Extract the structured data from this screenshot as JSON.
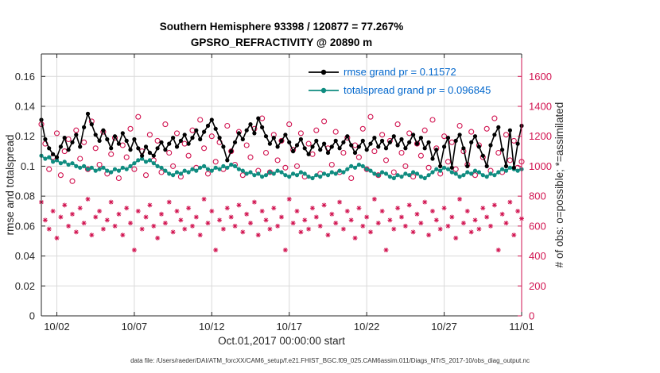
{
  "title_line1": "Southern Hemisphere 93398 / 120877 = 77.267%",
  "title_line2": "GPSRO_REFRACTIVITY @ 20890 m",
  "caption": "data file: /Users/raeder/DAI/ATM_forcXX/CAM6_setup/f.e21.FHIST_BGC.f09_025.CAM6assim.011/Diags_NTrS_2017-10/obs_diag_output.nc",
  "colors": {
    "rmse": "#000000",
    "spread": "#0f8c80",
    "obs": "#d11350",
    "legend_text": "#0066cc",
    "axis": "#262626",
    "grid": "#d9d9d9",
    "background": "#ffffff"
  },
  "chart_data": {
    "type": "line",
    "title": "Southern Hemisphere 93398 / 120877 = 77.267% — GPSRO_REFRACTIVITY @ 20890 m",
    "xlabel": "Oct.01,2017 00:00:00 start",
    "ylabel_left": "rmse and totalspread",
    "ylabel_right": "# of obs: o=possible; *=assimilated",
    "grid": true,
    "legend_position": "top-center-inside",
    "x_range": [
      1,
      32
    ],
    "x_ticks": {
      "values": [
        2,
        7,
        12,
        17,
        22,
        27,
        32
      ],
      "labels": [
        "10/02",
        "10/07",
        "10/12",
        "10/17",
        "10/22",
        "10/27",
        "11/01"
      ]
    },
    "ylim_left": [
      0,
      0.175
    ],
    "yticks_left": {
      "values": [
        0,
        0.02,
        0.04,
        0.06,
        0.08,
        0.1,
        0.12,
        0.14,
        0.16
      ],
      "labels": [
        "0",
        "0.02",
        "0.04",
        "0.06",
        "0.08",
        "0.1",
        "0.12",
        "0.14",
        "0.16"
      ]
    },
    "ylim_right": [
      0,
      1750
    ],
    "yticks_right": {
      "values": [
        0,
        200,
        400,
        600,
        800,
        1000,
        1200,
        1400,
        1600
      ],
      "labels": [
        "0",
        "200",
        "400",
        "600",
        "800",
        "1000",
        "1200",
        "1400",
        "1600"
      ]
    },
    "series": [
      {
        "name": "rmse grand pr = 0.11572",
        "style": "line-dot",
        "axis": "left",
        "color": "#000000",
        "values": [
          0.131,
          0.118,
          0.112,
          0.108,
          0.106,
          0.113,
          0.119,
          0.111,
          0.116,
          0.121,
          0.113,
          0.126,
          0.135,
          0.128,
          0.121,
          0.117,
          0.124,
          0.118,
          0.112,
          0.12,
          0.115,
          0.122,
          0.117,
          0.111,
          0.118,
          0.112,
          0.107,
          0.113,
          0.109,
          0.107,
          0.112,
          0.116,
          0.111,
          0.115,
          0.119,
          0.113,
          0.117,
          0.121,
          0.115,
          0.119,
          0.124,
          0.118,
          0.123,
          0.127,
          0.131,
          0.125,
          0.119,
          0.113,
          0.104,
          0.11,
          0.116,
          0.122,
          0.118,
          0.124,
          0.128,
          0.122,
          0.132,
          0.126,
          0.12,
          0.115,
          0.119,
          0.113,
          0.117,
          0.121,
          0.116,
          0.11,
          0.114,
          0.118,
          0.112,
          0.108,
          0.113,
          0.117,
          0.111,
          0.115,
          0.109,
          0.113,
          0.117,
          0.112,
          0.116,
          0.12,
          0.114,
          0.109,
          0.113,
          0.117,
          0.111,
          0.115,
          0.119,
          0.113,
          0.117,
          0.112,
          0.116,
          0.12,
          0.114,
          0.118,
          0.112,
          0.116,
          0.121,
          0.115,
          0.119,
          0.112,
          0.116,
          0.105,
          0.111,
          0.1,
          0.113,
          0.119,
          0.099,
          0.117,
          0.121,
          0.112,
          0.1,
          0.116,
          0.12,
          0.113,
          0.107,
          0.1,
          0.114,
          0.121,
          0.126,
          0.111,
          0.1,
          0.124,
          0.099,
          0.115,
          0.127
        ]
      },
      {
        "name": "totalspread grand pr = 0.096845",
        "style": "line-dot",
        "axis": "left",
        "color": "#0f8c80",
        "values": [
          0.107,
          0.105,
          0.106,
          0.103,
          0.104,
          0.102,
          0.103,
          0.101,
          0.102,
          0.1,
          0.099,
          0.1,
          0.098,
          0.099,
          0.097,
          0.098,
          0.099,
          0.097,
          0.096,
          0.098,
          0.097,
          0.099,
          0.098,
          0.1,
          0.102,
          0.104,
          0.105,
          0.103,
          0.104,
          0.102,
          0.1,
          0.099,
          0.097,
          0.095,
          0.094,
          0.096,
          0.095,
          0.097,
          0.096,
          0.098,
          0.097,
          0.099,
          0.1,
          0.098,
          0.097,
          0.099,
          0.098,
          0.1,
          0.099,
          0.101,
          0.1,
          0.098,
          0.097,
          0.095,
          0.096,
          0.094,
          0.095,
          0.093,
          0.094,
          0.096,
          0.095,
          0.097,
          0.096,
          0.094,
          0.093,
          0.095,
          0.094,
          0.096,
          0.095,
          0.093,
          0.092,
          0.094,
          0.093,
          0.095,
          0.094,
          0.096,
          0.095,
          0.097,
          0.096,
          0.098,
          0.1,
          0.099,
          0.101,
          0.1,
          0.098,
          0.097,
          0.095,
          0.094,
          0.096,
          0.095,
          0.093,
          0.092,
          0.094,
          0.093,
          0.095,
          0.094,
          0.096,
          0.095,
          0.093,
          0.092,
          0.094,
          0.096,
          0.098,
          0.097,
          0.099,
          0.098,
          0.096,
          0.095,
          0.093,
          0.094,
          0.096,
          0.095,
          0.097,
          0.096,
          0.094,
          0.093,
          0.095,
          0.094,
          0.096,
          0.098,
          0.097,
          0.099,
          0.098,
          0.097,
          0.098
        ]
      },
      {
        "name": "possible",
        "style": "open-circle",
        "axis": "right",
        "color": "#d11350",
        "values": [
          1280,
          1150,
          980,
          1060,
          1220,
          940,
          1100,
          1180,
          900,
          1240,
          1050,
          1160,
          980,
          1300,
          1120,
          1010,
          1230,
          950,
          1080,
          1190,
          920,
          1140,
          1060,
          1250,
          980,
          1330,
          1100,
          940,
          1210,
          1040,
          1170,
          960,
          1280,
          1090,
          1000,
          1220,
          930,
          1150,
          1070,
          1240,
          990,
          1310,
          1120,
          950,
          1200,
          1030,
          1160,
          980,
          1270,
          1100,
          1010,
          1230,
          940,
          1140,
          1060,
          1250,
          970,
          1320,
          1090,
          960,
          1210,
          1040,
          1170,
          990,
          1280,
          1110,
          1000,
          1220,
          930,
          1150,
          1080,
          1240,
          950,
          1300,
          1120,
          1010,
          1230,
          960,
          1090,
          1190,
          920,
          1140,
          1060,
          1250,
          980,
          1330,
          1100,
          940,
          1210,
          1040,
          1170,
          960,
          1280,
          1090,
          1000,
          1220,
          930,
          1150,
          1070,
          1240,
          990,
          1310,
          1120,
          950,
          1200,
          1030,
          1160,
          980,
          1270,
          1100,
          1010,
          1230,
          940,
          1140,
          1060,
          1250,
          970,
          1320,
          1090,
          960,
          1210,
          1040,
          1170,
          990,
          1030
        ]
      },
      {
        "name": "assimilated",
        "style": "asterisk",
        "axis": "right",
        "color": "#d11350",
        "values": [
          760,
          640,
          580,
          700,
          520,
          660,
          740,
          600,
          680,
          560,
          720,
          620,
          780,
          540,
          660,
          700,
          580,
          640,
          760,
          600,
          680,
          540,
          720,
          620,
          440,
          700,
          580,
          660,
          740,
          600,
          520,
          680,
          620,
          760,
          560,
          700,
          640,
          580,
          720,
          600,
          660,
          540,
          780,
          620,
          700,
          440,
          640,
          580,
          720,
          660,
          600,
          740,
          560,
          680,
          620,
          760,
          540,
          700,
          640,
          580,
          720,
          600,
          660,
          440,
          780,
          620,
          700,
          560,
          640,
          580,
          720,
          660,
          600,
          740,
          540,
          680,
          620,
          760,
          580,
          700,
          640,
          520,
          720,
          600,
          660,
          560,
          780,
          620,
          700,
          440,
          640,
          580,
          720,
          660,
          600,
          740,
          560,
          680,
          620,
          760,
          540,
          700,
          640,
          580,
          720,
          600,
          660,
          520,
          780,
          620,
          700,
          560,
          640,
          580,
          720,
          660,
          600,
          740,
          440,
          680,
          620,
          760,
          540,
          700,
          650
        ]
      }
    ],
    "legend": [
      "rmse grand pr = 0.11572",
      "totalspread grand pr = 0.096845"
    ]
  }
}
